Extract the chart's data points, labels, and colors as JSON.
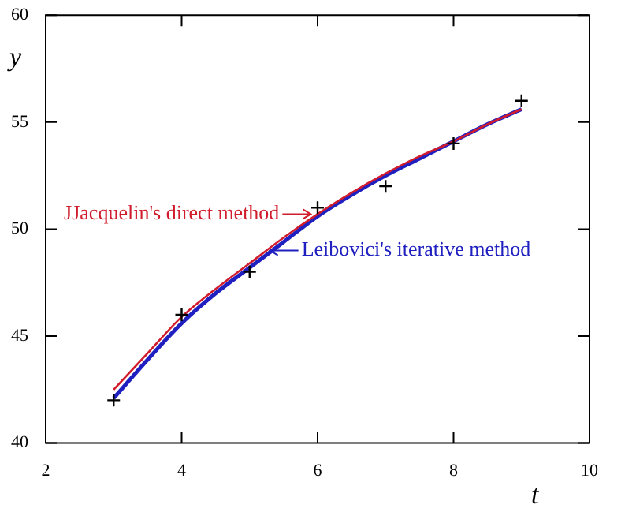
{
  "chart_data": {
    "type": "line",
    "xlabel": "t",
    "ylabel": "y",
    "xlim": [
      2,
      10
    ],
    "ylim": [
      40,
      60
    ],
    "xticks": [
      2,
      4,
      6,
      8,
      10
    ],
    "yticks": [
      40,
      45,
      50,
      55,
      60
    ],
    "grid": false,
    "legend": false,
    "line_style": "solid",
    "marker": "none",
    "annotations": [
      {
        "text": "JJacquelin's direct method",
        "x": 5.9,
        "y": 50.7
      },
      {
        "text": "Leibovici's iterative method",
        "x": 5.3,
        "y": 49.0
      }
    ],
    "series": [
      {
        "color": "#d01c2c",
        "x": [
          3,
          3.5,
          4,
          4.5,
          5,
          5.5,
          6,
          6.5,
          7,
          7.5,
          8,
          8.5,
          9
        ],
        "values": [
          42.5,
          44.2,
          45.9,
          47.2,
          48.4,
          49.6,
          50.7,
          51.7,
          52.6,
          53.4,
          54.1,
          54.9,
          55.6
        ]
      },
      {
        "color": "#2020c0",
        "x": [
          3,
          3.5,
          4,
          4.5,
          5,
          5.5,
          6,
          6.5,
          7,
          7.5,
          8,
          8.5,
          9
        ],
        "values": [
          42.1,
          43.9,
          45.6,
          47.0,
          48.2,
          49.4,
          50.6,
          51.6,
          52.5,
          53.3,
          54.1,
          54.9,
          55.6
        ]
      },
      {
        "type": "scatter",
        "marker": "cross",
        "color": "#000000",
        "x": [
          3,
          4,
          5,
          6,
          7,
          8,
          9
        ],
        "values": [
          42,
          46,
          48,
          51,
          52,
          54,
          56
        ]
      }
    ]
  }
}
